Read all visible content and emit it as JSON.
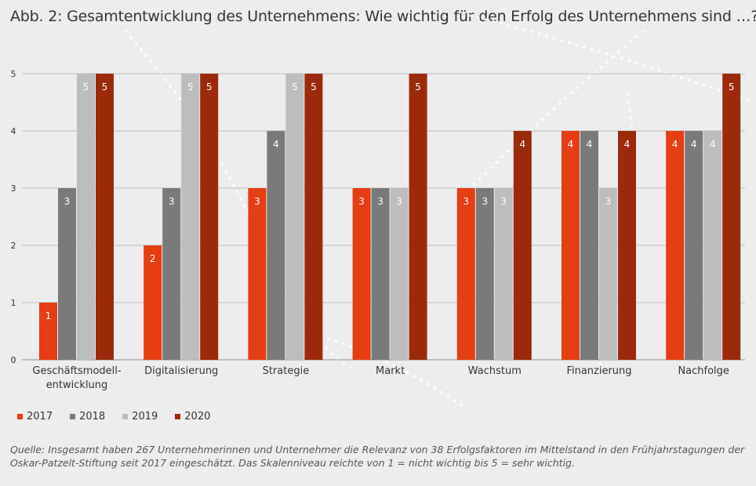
{
  "title": "Abb. 2:  Gesamtentwicklung des Unternehmens: Wie wichtig für den Erfolg des Unternehmens sind …?",
  "source": "Quelle: Insgesamt haben 267 Unternehmerinnen und Unternehmer die Relevanz von 38 Erfolgsfaktoren im Mittelstand in den Frühjahrstagungen der Oskar-Patzelt-Stiftung seit 2017 eingeschätzt. Das Skalenniveau reichte von 1 = nicht wichtig bis 5 = sehr wichtig.",
  "colors": {
    "2017": "#e63d12",
    "2018": "#7a7a7a",
    "2019": "#bdbdbd",
    "2020": "#9c2a08"
  },
  "chart_data": {
    "type": "bar",
    "categories": [
      "Geschäftsmodell-\nentwicklung",
      "Digitalisierung",
      "Strategie",
      "Markt",
      "Wachstum",
      "Finanzierung",
      "Nachfolge"
    ],
    "series": [
      {
        "name": "2017",
        "values": [
          1,
          2,
          3,
          3,
          3,
          4,
          4
        ]
      },
      {
        "name": "2018",
        "values": [
          3,
          3,
          4,
          3,
          3,
          4,
          4
        ]
      },
      {
        "name": "2019",
        "values": [
          5,
          5,
          5,
          3,
          3,
          3,
          4
        ]
      },
      {
        "name": "2020",
        "values": [
          5,
          5,
          5,
          5,
          4,
          4,
          5
        ]
      }
    ],
    "yticks": [
      0,
      1,
      2,
      3,
      4,
      5
    ],
    "ylim": [
      0,
      5
    ],
    "grid": true,
    "legend": "bottom-left",
    "data_labels": true
  }
}
